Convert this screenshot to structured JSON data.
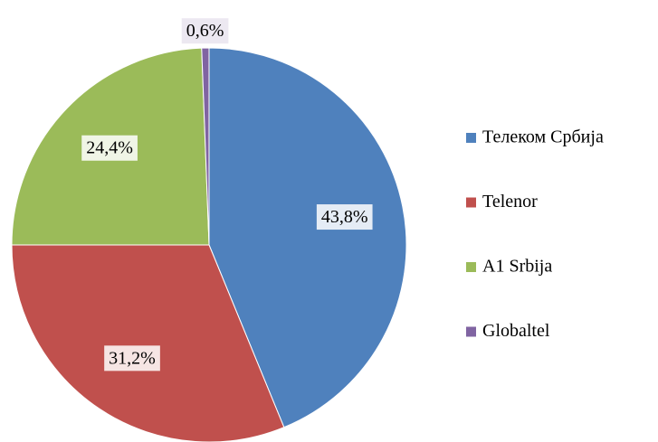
{
  "chart_data": {
    "type": "pie",
    "categories": [
      "Телеком Србија",
      "Telenor",
      "A1 Srbija",
      "Globaltel"
    ],
    "values": [
      43.8,
      31.2,
      24.4,
      0.6
    ],
    "value_labels": [
      "43,8%",
      "31,2%",
      "24,4%",
      "0,6%"
    ],
    "colors": [
      "#4f81bd",
      "#c0504d",
      "#9bbb59",
      "#8064a2"
    ],
    "legend": "right"
  }
}
